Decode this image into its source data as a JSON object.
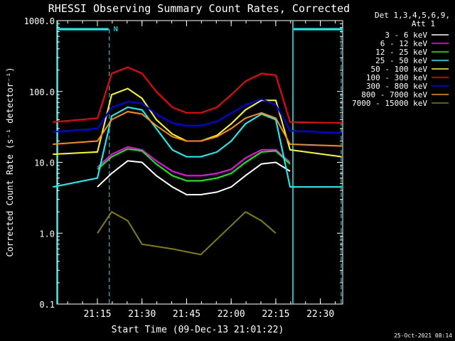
{
  "chart_data": {
    "type": "line",
    "title": "RHESSI Observing Summary Count Rates, Corrected",
    "xlabel": "Start Time (09-Dec-13 21:01:22)",
    "ylabel": "Corrected Count Rate (s⁻¹ detector⁻¹)",
    "y_scale": "log",
    "ylim": [
      0.1,
      1000.0
    ],
    "y_ticks": [
      "0.1",
      "1.0",
      "10.0",
      "100.0",
      "1000.0"
    ],
    "xlim": [
      "21:01:22",
      "22:37:30"
    ],
    "x_ticks": [
      "21:15",
      "21:30",
      "21:45",
      "22:00",
      "22:15",
      "22:30"
    ],
    "legend_header": [
      "Det 1,3,4,5,6,9,",
      "Att 1"
    ],
    "legend_position": "right",
    "timestamp": "25-Oct-2021 08:14",
    "night_marker_label": "N",
    "night_intervals": [
      [
        "21:01:22",
        "21:19:00"
      ],
      [
        "22:20:30",
        "22:37:30"
      ]
    ],
    "data_gaps": [
      "21:01:22",
      "22:20:30"
    ],
    "attenuator_lines": [
      "21:19:00",
      "22:37:00"
    ],
    "series": [
      {
        "name": "3 - 6 keV",
        "color": "#ffffff",
        "values": [
          [
            21.25,
            4.5
          ],
          [
            21.33,
            7.0
          ],
          [
            21.42,
            10.5
          ],
          [
            21.5,
            10.0
          ],
          [
            21.58,
            6.5
          ],
          [
            21.67,
            4.5
          ],
          [
            21.75,
            3.5
          ],
          [
            21.83,
            3.5
          ],
          [
            21.92,
            3.8
          ],
          [
            22.0,
            4.5
          ],
          [
            22.08,
            6.5
          ],
          [
            22.17,
            9.5
          ],
          [
            22.25,
            10.0
          ],
          [
            22.33,
            7.5
          ]
        ]
      },
      {
        "name": "6 - 12 keV",
        "color": "#ff00ff",
        "values": [
          [
            21.25,
            8.5
          ],
          [
            21.33,
            13.0
          ],
          [
            21.42,
            16.5
          ],
          [
            21.5,
            15.0
          ],
          [
            21.58,
            10.5
          ],
          [
            21.67,
            7.5
          ],
          [
            21.75,
            6.5
          ],
          [
            21.83,
            6.5
          ],
          [
            21.92,
            7.0
          ],
          [
            22.0,
            8.0
          ],
          [
            22.08,
            11.5
          ],
          [
            22.17,
            15.0
          ],
          [
            22.25,
            15.0
          ],
          [
            22.33,
            10.0
          ]
        ]
      },
      {
        "name": "12 - 25 keV",
        "color": "#00ff00",
        "values": [
          [
            21.25,
            8.0
          ],
          [
            21.33,
            12.0
          ],
          [
            21.42,
            15.5
          ],
          [
            21.5,
            14.5
          ],
          [
            21.58,
            9.5
          ],
          [
            21.67,
            6.5
          ],
          [
            21.75,
            5.5
          ],
          [
            21.83,
            5.5
          ],
          [
            21.92,
            6.0
          ],
          [
            22.0,
            7.0
          ],
          [
            22.08,
            10.0
          ],
          [
            22.17,
            14.0
          ],
          [
            22.25,
            14.5
          ],
          [
            22.33,
            9.5
          ]
        ]
      },
      {
        "name": "25 - 50 keV",
        "color": "#00ffff",
        "values": [
          [
            21.0,
            4.5
          ],
          [
            21.25,
            6.0
          ],
          [
            21.33,
            45.0
          ],
          [
            21.42,
            60.0
          ],
          [
            21.5,
            55.0
          ],
          [
            21.58,
            30.0
          ],
          [
            21.67,
            15.0
          ],
          [
            21.75,
            12.0
          ],
          [
            21.83,
            12.0
          ],
          [
            21.92,
            14.0
          ],
          [
            22.0,
            20.0
          ],
          [
            22.08,
            35.0
          ],
          [
            22.17,
            48.0
          ],
          [
            22.25,
            40.0
          ],
          [
            22.33,
            4.5
          ],
          [
            22.62,
            4.5
          ]
        ]
      },
      {
        "name": "50 - 100 keV",
        "color": "#ffff00",
        "values": [
          [
            21.0,
            13.0
          ],
          [
            21.25,
            14.0
          ],
          [
            21.33,
            90.0
          ],
          [
            21.42,
            110.0
          ],
          [
            21.5,
            80.0
          ],
          [
            21.58,
            40.0
          ],
          [
            21.67,
            25.0
          ],
          [
            21.75,
            20.0
          ],
          [
            21.83,
            20.0
          ],
          [
            21.92,
            24.0
          ],
          [
            22.0,
            35.0
          ],
          [
            22.08,
            55.0
          ],
          [
            22.17,
            75.0
          ],
          [
            22.25,
            75.0
          ],
          [
            22.33,
            15.0
          ],
          [
            22.62,
            12.0
          ]
        ]
      },
      {
        "name": "100 - 300 keV",
        "color": "#ff0000",
        "values": [
          [
            21.0,
            37.0
          ],
          [
            21.25,
            42.0
          ],
          [
            21.33,
            180.0
          ],
          [
            21.42,
            220.0
          ],
          [
            21.5,
            180.0
          ],
          [
            21.58,
            100.0
          ],
          [
            21.67,
            60.0
          ],
          [
            21.75,
            50.0
          ],
          [
            21.83,
            50.0
          ],
          [
            21.92,
            60.0
          ],
          [
            22.0,
            90.0
          ],
          [
            22.08,
            140.0
          ],
          [
            22.17,
            180.0
          ],
          [
            22.25,
            170.0
          ],
          [
            22.33,
            37.0
          ],
          [
            22.62,
            36.0
          ]
        ]
      },
      {
        "name": "300 - 800 keV",
        "color": "#0000ff",
        "values": [
          [
            21.0,
            27.0
          ],
          [
            21.25,
            30.0
          ],
          [
            21.33,
            60.0
          ],
          [
            21.42,
            72.0
          ],
          [
            21.5,
            68.0
          ],
          [
            21.58,
            48.0
          ],
          [
            21.67,
            36.0
          ],
          [
            21.75,
            33.0
          ],
          [
            21.83,
            33.0
          ],
          [
            21.92,
            38.0
          ],
          [
            22.0,
            50.0
          ],
          [
            22.08,
            65.0
          ],
          [
            22.17,
            78.0
          ],
          [
            22.25,
            65.0
          ],
          [
            22.33,
            28.0
          ],
          [
            22.62,
            26.0
          ]
        ]
      },
      {
        "name": "800 - 7000 keV",
        "color": "#ff8c00",
        "values": [
          [
            21.0,
            18.0
          ],
          [
            21.25,
            20.0
          ],
          [
            21.33,
            40.0
          ],
          [
            21.42,
            52.0
          ],
          [
            21.5,
            48.0
          ],
          [
            21.58,
            33.0
          ],
          [
            21.67,
            23.0
          ],
          [
            21.75,
            20.0
          ],
          [
            21.83,
            20.0
          ],
          [
            21.92,
            23.0
          ],
          [
            22.0,
            30.0
          ],
          [
            22.08,
            42.0
          ],
          [
            22.17,
            50.0
          ],
          [
            22.25,
            42.0
          ],
          [
            22.33,
            18.0
          ],
          [
            22.62,
            17.0
          ]
        ]
      },
      {
        "name": "7000 - 15000 keV",
        "color": "#808000",
        "values": [
          [
            21.25,
            1.0
          ],
          [
            21.33,
            2.0
          ],
          [
            21.42,
            1.5
          ],
          [
            21.5,
            0.7
          ],
          [
            21.67,
            0.6
          ],
          [
            21.83,
            0.5
          ],
          [
            22.08,
            2.0
          ],
          [
            22.17,
            1.5
          ],
          [
            22.25,
            1.0
          ]
        ]
      }
    ]
  }
}
